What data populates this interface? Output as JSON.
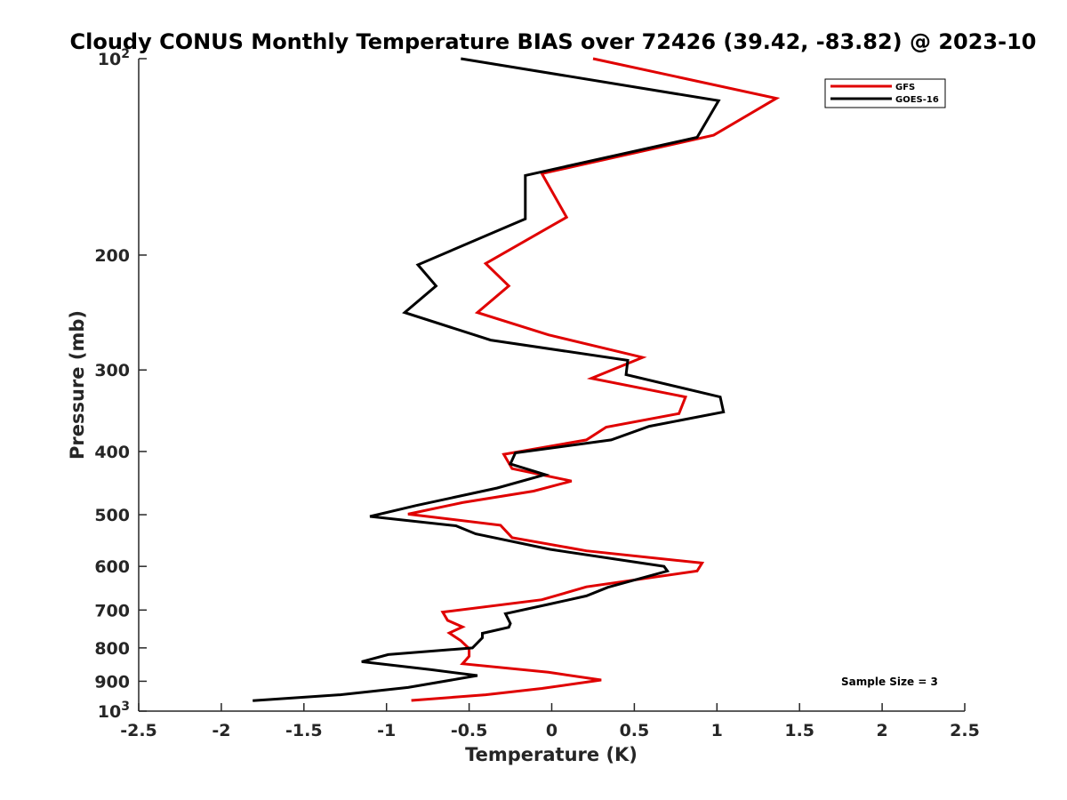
{
  "chart_data": {
    "type": "line",
    "title": "Cloudy CONUS Monthly Temperature BIAS over 72426 (39.42, -83.82) @ 2023-10",
    "xlabel": "Temperature (K)",
    "ylabel": "Pressure (mb)",
    "xlim": [
      -2.5,
      2.5
    ],
    "ylim": [
      100,
      1000
    ],
    "yscale": "log",
    "y_reversed": true,
    "x_ticks": [
      -2.5,
      -2,
      -1.5,
      -1,
      -0.5,
      0,
      0.5,
      1,
      1.5,
      2,
      2.5
    ],
    "x_tick_labels": [
      "-2.5",
      "-2",
      "-1.5",
      "-1",
      "-0.5",
      "0",
      "0.5",
      "1",
      "1.5",
      "2",
      "2.5"
    ],
    "y_ticks": [
      100,
      200,
      300,
      400,
      500,
      600,
      700,
      800,
      900,
      1000
    ],
    "y_tick_labels": [
      {
        "base": "10",
        "exp": "2"
      },
      {
        "base": "200",
        "exp": ""
      },
      {
        "base": "300",
        "exp": ""
      },
      {
        "base": "400",
        "exp": ""
      },
      {
        "base": "500",
        "exp": ""
      },
      {
        "base": "600",
        "exp": ""
      },
      {
        "base": "700",
        "exp": ""
      },
      {
        "base": "800",
        "exp": ""
      },
      {
        "base": "900",
        "exp": ""
      },
      {
        "base": "10",
        "exp": "3"
      }
    ],
    "legend_position": "top-right",
    "series": [
      {
        "name": "GFS",
        "color": "#e00000",
        "points": [
          [
            0.25,
            100
          ],
          [
            1.36,
            115
          ],
          [
            0.98,
            131
          ],
          [
            -0.06,
            150
          ],
          [
            0.09,
            175
          ],
          [
            -0.4,
            206
          ],
          [
            -0.26,
            223
          ],
          [
            -0.45,
            245
          ],
          [
            -0.02,
            265
          ],
          [
            0.55,
            287
          ],
          [
            0.24,
            309
          ],
          [
            0.81,
            330
          ],
          [
            0.77,
            350
          ],
          [
            0.33,
            367
          ],
          [
            0.21,
            384
          ],
          [
            -0.29,
            404
          ],
          [
            -0.24,
            425
          ],
          [
            0.12,
            444
          ],
          [
            -0.11,
            460
          ],
          [
            -0.54,
            479
          ],
          [
            -0.87,
            499
          ],
          [
            -0.31,
            519
          ],
          [
            -0.24,
            542
          ],
          [
            0.21,
            568
          ],
          [
            0.91,
            593
          ],
          [
            0.88,
            610
          ],
          [
            0.21,
            645
          ],
          [
            -0.06,
            675
          ],
          [
            -0.66,
            705
          ],
          [
            -0.63,
            726
          ],
          [
            -0.54,
            743
          ],
          [
            -0.62,
            759
          ],
          [
            -0.55,
            780
          ],
          [
            -0.5,
            802
          ],
          [
            -0.5,
            824
          ],
          [
            -0.54,
            846
          ],
          [
            -0.02,
            872
          ],
          [
            0.3,
            896
          ],
          [
            -0.06,
            923
          ],
          [
            -0.4,
            944
          ],
          [
            -0.85,
            963
          ]
        ]
      },
      {
        "name": "GOES-16",
        "color": "#000000",
        "points": [
          [
            -0.55,
            100
          ],
          [
            1.01,
            116
          ],
          [
            0.88,
            132
          ],
          [
            -0.16,
            151
          ],
          [
            -0.16,
            176
          ],
          [
            -0.81,
            207
          ],
          [
            -0.7,
            223
          ],
          [
            -0.89,
            245
          ],
          [
            -0.37,
            270
          ],
          [
            0.46,
            290
          ],
          [
            0.45,
            305
          ],
          [
            1.02,
            330
          ],
          [
            1.04,
            348
          ],
          [
            0.59,
            366
          ],
          [
            0.36,
            384
          ],
          [
            -0.22,
            402
          ],
          [
            -0.25,
            418
          ],
          [
            -0.04,
            434
          ],
          [
            -0.33,
            455
          ],
          [
            -0.82,
            484
          ],
          [
            -1.1,
            503
          ],
          [
            -0.58,
            520
          ],
          [
            -0.46,
            535
          ],
          [
            -0.01,
            565
          ],
          [
            0.68,
            600
          ],
          [
            0.7,
            610
          ],
          [
            0.34,
            646
          ],
          [
            0.21,
            666
          ],
          [
            -0.02,
            686
          ],
          [
            -0.28,
            709
          ],
          [
            -0.25,
            734
          ],
          [
            -0.26,
            744
          ],
          [
            -0.42,
            760
          ],
          [
            -0.42,
            772
          ],
          [
            -0.48,
            800
          ],
          [
            -0.99,
            819
          ],
          [
            -1.15,
            840
          ],
          [
            -0.73,
            864
          ],
          [
            -0.45,
            882
          ],
          [
            -0.87,
            920
          ],
          [
            -1.28,
            944
          ],
          [
            -1.81,
            964
          ]
        ]
      }
    ],
    "annotation": "Sample Size = 3"
  }
}
